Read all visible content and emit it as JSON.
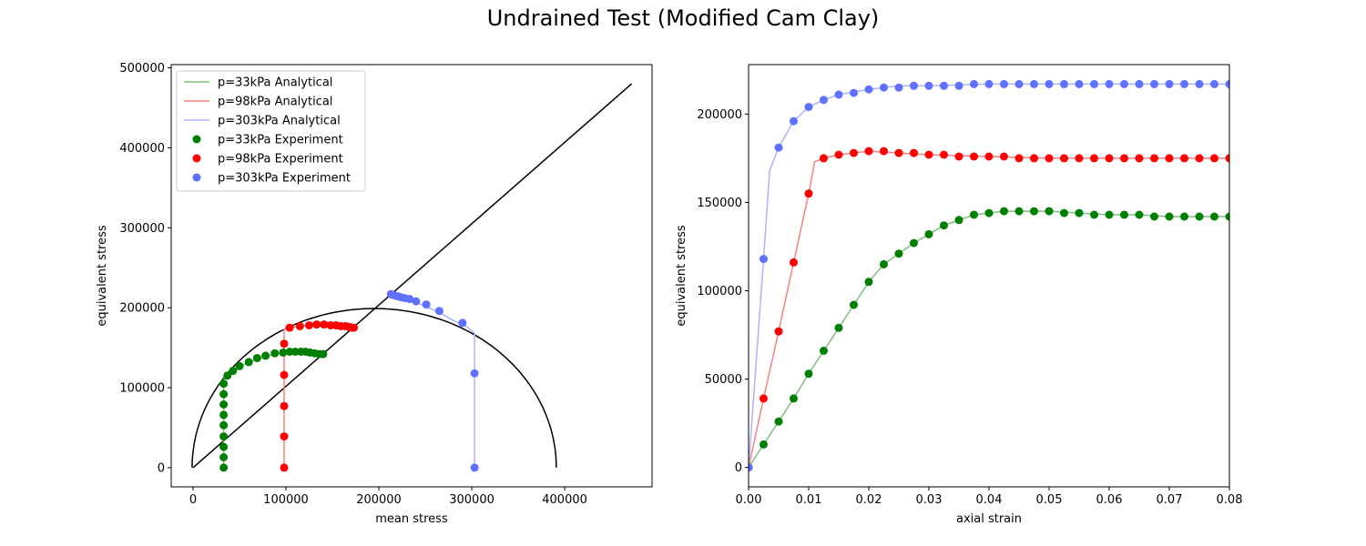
{
  "figure": {
    "title": "Undrained Test (Modified Cam Clay)"
  },
  "chart_data": [
    {
      "type": "scatter",
      "title": "",
      "xlabel": "mean stress",
      "ylabel": "equivalent stress",
      "xlim": [
        -23500,
        494000
      ],
      "ylim": [
        -24000,
        504000
      ],
      "xticks": [
        0,
        100000,
        200000,
        300000,
        400000
      ],
      "yticks": [
        0,
        100000,
        200000,
        300000,
        400000,
        500000
      ],
      "xtick_labels": [
        "0",
        "100000",
        "200000",
        "300000",
        "400000"
      ],
      "ytick_labels": [
        "0",
        "100000",
        "200000",
        "300000",
        "400000",
        "500000"
      ],
      "grid": false,
      "legend_position": "top-left",
      "reference_lines": [
        {
          "name": "critical state line",
          "color": "#000000",
          "x": [
            0,
            472000
          ],
          "y": [
            0,
            480000
          ]
        },
        {
          "name": "yield surface",
          "color": "#000000",
          "type": "ellipse",
          "center_x": 195000,
          "radius_x": 196000,
          "radius_y": 199000
        }
      ],
      "series": [
        {
          "name": "p=33kPa Analytical",
          "kind": "line",
          "color": "#7fbf7f",
          "x": [
            33000,
            33000,
            33000,
            33000,
            33000,
            33000,
            33000,
            33000,
            33000,
            33000,
            37000,
            44000,
            52000,
            60000,
            70000,
            80000,
            90000,
            100000,
            110000,
            120000,
            130000,
            140000
          ],
          "y": [
            0,
            13000,
            26000,
            39000,
            53000,
            66000,
            79000,
            92000,
            105000,
            110000,
            115000,
            121000,
            127000,
            132000,
            136000,
            140000,
            142000,
            144000,
            145000,
            145000,
            144000,
            142000
          ]
        },
        {
          "name": "p=98kPa Analytical",
          "kind": "line",
          "color": "#ff7f7f",
          "x": [
            98000,
            98000,
            98000,
            98000,
            98000,
            98000,
            98000,
            104000,
            115000,
            125000,
            135000,
            145000,
            155000,
            165000,
            175000
          ],
          "y": [
            0,
            39000,
            77000,
            116000,
            155000,
            165000,
            173000,
            175000,
            177000,
            178000,
            178000,
            177000,
            177000,
            176000,
            175000
          ]
        },
        {
          "name": "p=303kPa Analytical",
          "kind": "line",
          "color": "#aab4ff",
          "x": [
            303000,
            303000,
            303000,
            303000,
            295000,
            280000,
            265000,
            250000,
            240000,
            230000,
            222000,
            215000,
            210000
          ],
          "y": [
            0,
            118000,
            160000,
            168000,
            176000,
            184000,
            194000,
            202000,
            207000,
            211000,
            214000,
            216000,
            217000
          ]
        },
        {
          "name": "p=33kPa Experiment",
          "kind": "scatter",
          "color": "#008000",
          "x": [
            33000,
            33000,
            33000,
            33000,
            33000,
            33000,
            33000,
            33000,
            33000,
            37000,
            43000,
            50000,
            60000,
            69000,
            78000,
            88000,
            97000,
            104000,
            110000,
            116000,
            121000,
            126000,
            131000,
            136000,
            140000
          ],
          "y": [
            0,
            13000,
            26000,
            39000,
            53000,
            66000,
            79000,
            92000,
            105000,
            115000,
            121000,
            127000,
            132000,
            137000,
            140000,
            143000,
            144000,
            145000,
            145000,
            145000,
            145000,
            144000,
            143000,
            142000,
            142000
          ]
        },
        {
          "name": "p=98kPa Experiment",
          "kind": "scatter",
          "color": "#ff0000",
          "x": [
            98000,
            98000,
            98000,
            98000,
            98000,
            104000,
            115000,
            125000,
            133000,
            141000,
            148000,
            154000,
            159000,
            164000,
            168000,
            171000,
            173000
          ],
          "y": [
            0,
            39000,
            77000,
            116000,
            155000,
            175000,
            177000,
            178000,
            179000,
            179000,
            178000,
            178000,
            177000,
            177000,
            176000,
            175000,
            175000
          ]
        },
        {
          "name": "p=303kPa Experiment",
          "kind": "scatter",
          "color": "#6070ff",
          "x": [
            303000,
            303000,
            290000,
            265000,
            251000,
            240000,
            233000,
            228000,
            224000,
            221000,
            218000,
            215000,
            213000
          ],
          "y": [
            0,
            118000,
            181000,
            196000,
            204000,
            208000,
            211000,
            212000,
            213000,
            214000,
            215000,
            216000,
            217000
          ]
        }
      ]
    },
    {
      "type": "line",
      "title": "",
      "xlabel": "axial strain",
      "ylabel": "equivalent stress",
      "xlim": [
        0.0,
        0.08
      ],
      "ylim": [
        -11000,
        228000
      ],
      "xticks": [
        0.0,
        0.01,
        0.02,
        0.03,
        0.04,
        0.05,
        0.06,
        0.07,
        0.08
      ],
      "yticks": [
        0,
        50000,
        100000,
        150000,
        200000
      ],
      "xtick_labels": [
        "0.00",
        "0.01",
        "0.02",
        "0.03",
        "0.04",
        "0.05",
        "0.06",
        "0.07",
        "0.08"
      ],
      "ytick_labels": [
        "0",
        "50000",
        "100000",
        "150000",
        "200000"
      ],
      "grid": false,
      "series": [
        {
          "name": "p=33kPa Analytical",
          "kind": "line",
          "color": "#7fbf7f",
          "x": [
            0.0,
            0.0025,
            0.005,
            0.0075,
            0.01,
            0.0125,
            0.015,
            0.0175,
            0.02,
            0.0215,
            0.0225,
            0.025,
            0.0275,
            0.03,
            0.0325,
            0.035,
            0.0375,
            0.04,
            0.0425,
            0.045,
            0.05,
            0.055,
            0.06,
            0.065,
            0.07,
            0.075,
            0.08
          ],
          "y": [
            0,
            13000,
            26000,
            39000,
            53000,
            66000,
            79000,
            92000,
            105000,
            111000,
            115000,
            121000,
            127000,
            132000,
            137000,
            140000,
            143000,
            144000,
            145000,
            145000,
            145000,
            144000,
            143000,
            143000,
            142000,
            142000,
            142000
          ]
        },
        {
          "name": "p=98kPa Analytical",
          "kind": "line",
          "color": "#ff7f7f",
          "x": [
            0.0,
            0.0025,
            0.005,
            0.0075,
            0.01,
            0.011,
            0.0125,
            0.015,
            0.0175,
            0.02,
            0.025,
            0.03,
            0.04,
            0.05,
            0.06,
            0.07,
            0.08
          ],
          "y": [
            0,
            39000,
            77000,
            116000,
            155000,
            173000,
            175000,
            177000,
            178000,
            179000,
            178000,
            177000,
            176000,
            175000,
            175000,
            175000,
            175000
          ]
        },
        {
          "name": "p=303kPa Analytical",
          "kind": "line",
          "color": "#aab4ff",
          "x": [
            0.0,
            0.0025,
            0.0035,
            0.005,
            0.0075,
            0.01,
            0.0125,
            0.015,
            0.02,
            0.025,
            0.03,
            0.04,
            0.05,
            0.06,
            0.07,
            0.08
          ],
          "y": [
            0,
            118000,
            168000,
            181000,
            196000,
            204000,
            208000,
            211000,
            214000,
            216000,
            216000,
            217000,
            217000,
            217000,
            217000,
            217000
          ]
        },
        {
          "name": "p=33kPa Experiment",
          "kind": "scatter",
          "color": "#008000",
          "x": [
            0.0,
            0.0025,
            0.005,
            0.0075,
            0.01,
            0.0125,
            0.015,
            0.0175,
            0.02,
            0.0225,
            0.025,
            0.0275,
            0.03,
            0.0325,
            0.035,
            0.0375,
            0.04,
            0.0425,
            0.045,
            0.0475,
            0.05,
            0.0525,
            0.055,
            0.0575,
            0.06,
            0.0625,
            0.065,
            0.0675,
            0.07,
            0.0725,
            0.075,
            0.0775,
            0.08
          ],
          "y": [
            0,
            13000,
            26000,
            39000,
            53000,
            66000,
            79000,
            92000,
            105000,
            115000,
            121000,
            127000,
            132000,
            137000,
            140000,
            143000,
            144000,
            145000,
            145000,
            145000,
            145000,
            144000,
            144000,
            143000,
            143000,
            143000,
            143000,
            142000,
            142000,
            142000,
            142000,
            142000,
            142000
          ]
        },
        {
          "name": "p=98kPa Experiment",
          "kind": "scatter",
          "color": "#ff0000",
          "x": [
            0.0,
            0.0025,
            0.005,
            0.0075,
            0.01,
            0.0125,
            0.015,
            0.0175,
            0.02,
            0.0225,
            0.025,
            0.0275,
            0.03,
            0.0325,
            0.035,
            0.0375,
            0.04,
            0.0425,
            0.045,
            0.0475,
            0.05,
            0.0525,
            0.055,
            0.0575,
            0.06,
            0.0625,
            0.065,
            0.0675,
            0.07,
            0.0725,
            0.075,
            0.0775,
            0.08
          ],
          "y": [
            0,
            39000,
            77000,
            116000,
            155000,
            175000,
            177000,
            178000,
            179000,
            179000,
            178000,
            178000,
            177000,
            177000,
            176000,
            176000,
            176000,
            176000,
            175000,
            175000,
            175000,
            175000,
            175000,
            175000,
            175000,
            175000,
            175000,
            175000,
            175000,
            175000,
            175000,
            175000,
            175000
          ]
        },
        {
          "name": "p=303kPa Experiment",
          "kind": "scatter",
          "color": "#6070ff",
          "x": [
            0.0,
            0.0025,
            0.005,
            0.0075,
            0.01,
            0.0125,
            0.015,
            0.0175,
            0.02,
            0.0225,
            0.025,
            0.0275,
            0.03,
            0.0325,
            0.035,
            0.0375,
            0.04,
            0.0425,
            0.045,
            0.0475,
            0.05,
            0.0525,
            0.055,
            0.0575,
            0.06,
            0.0625,
            0.065,
            0.0675,
            0.07,
            0.0725,
            0.075,
            0.0775,
            0.08
          ],
          "y": [
            0,
            118000,
            181000,
            196000,
            204000,
            208000,
            211000,
            212000,
            214000,
            215000,
            215000,
            216000,
            216000,
            216000,
            216000,
            217000,
            217000,
            217000,
            217000,
            217000,
            217000,
            217000,
            217000,
            217000,
            217000,
            217000,
            217000,
            217000,
            217000,
            217000,
            217000,
            217000,
            217000
          ]
        }
      ]
    }
  ]
}
